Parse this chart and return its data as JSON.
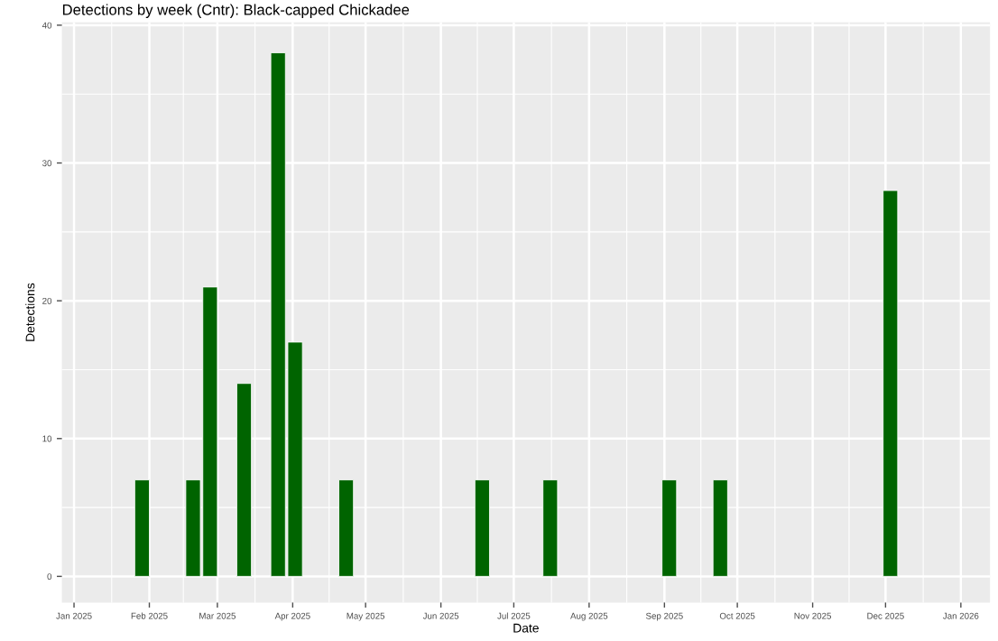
{
  "chart_data": {
    "type": "bar",
    "title": "Detections by week (Cntr): Black-capped Chickadee",
    "xlabel": "Date",
    "ylabel": "Detections",
    "x": [
      "2025-01-29",
      "2025-02-19",
      "2025-02-26",
      "2025-03-12",
      "2025-03-26",
      "2025-04-02",
      "2025-04-23",
      "2025-06-18",
      "2025-07-16",
      "2025-09-03",
      "2025-09-24",
      "2025-12-03"
    ],
    "values": [
      7,
      7,
      21,
      14,
      38,
      17,
      7,
      7,
      7,
      7,
      7,
      28
    ],
    "color": "#006400",
    "xlim": [
      "2024-12-27",
      "2026-01-13"
    ],
    "xticks": [
      {
        "value": "2025-01-01",
        "label": "Jan 2025"
      },
      {
        "value": "2025-02-01",
        "label": "Feb 2025"
      },
      {
        "value": "2025-03-01",
        "label": "Mar 2025"
      },
      {
        "value": "2025-04-01",
        "label": "Apr 2025"
      },
      {
        "value": "2025-05-01",
        "label": "May 2025"
      },
      {
        "value": "2025-06-01",
        "label": "Jun 2025"
      },
      {
        "value": "2025-07-01",
        "label": "Jul 2025"
      },
      {
        "value": "2025-08-01",
        "label": "Aug 2025"
      },
      {
        "value": "2025-09-01",
        "label": "Sep 2025"
      },
      {
        "value": "2025-10-01",
        "label": "Oct 2025"
      },
      {
        "value": "2025-11-01",
        "label": "Nov 2025"
      },
      {
        "value": "2025-12-01",
        "label": "Dec 2025"
      },
      {
        "value": "2026-01-01",
        "label": "Jan 2026"
      }
    ],
    "ylim": [
      -1.9,
      40.2
    ],
    "yticks": [
      0,
      10,
      20,
      30,
      40
    ],
    "grid": true
  }
}
